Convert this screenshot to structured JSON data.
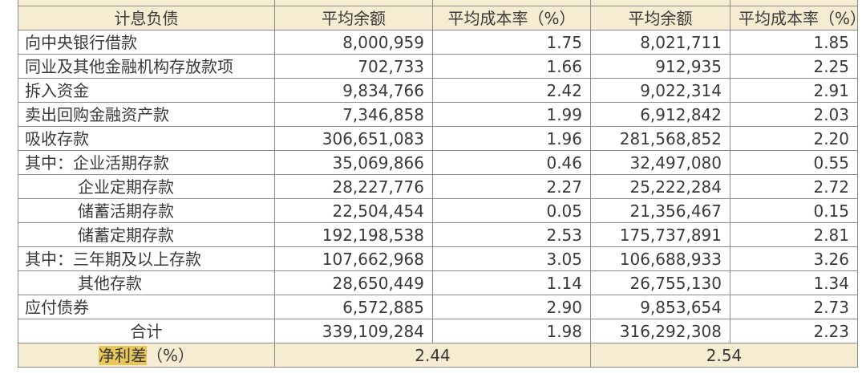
{
  "table": {
    "header": [
      "计息负债",
      "平均余额",
      "平均成本率（%）",
      "平均余额",
      "平均成本率（%）"
    ],
    "rows": [
      {
        "label": "向中央银行借款",
        "bal1": "8,000,959",
        "rate1": "1.75",
        "bal2": "8,021,711",
        "rate2": "1.85"
      },
      {
        "label": "同业及其他金融机构存放款项",
        "bal1": "702,733",
        "rate1": "1.66",
        "bal2": "912,935",
        "rate2": "2.25"
      },
      {
        "label": "拆入资金",
        "bal1": "9,834,766",
        "rate1": "2.42",
        "bal2": "9,022,314",
        "rate2": "2.91"
      },
      {
        "label": "卖出回购金融资产款",
        "bal1": "7,346,858",
        "rate1": "1.99",
        "bal2": "6,912,842",
        "rate2": "2.03"
      },
      {
        "label": "吸收存款",
        "bal1": "306,651,083",
        "rate1": "1.96",
        "bal2": "281,568,852",
        "rate2": "2.20"
      },
      {
        "label": "其中：企业活期存款",
        "bal1": "35,069,866",
        "rate1": "0.46",
        "bal2": "32,497,080",
        "rate2": "0.55"
      },
      {
        "label": "企业定期存款",
        "bal1": "28,227,776",
        "rate1": "2.27",
        "bal2": "25,222,284",
        "rate2": "2.72"
      },
      {
        "label": "储蓄活期存款",
        "bal1": "22,504,454",
        "rate1": "0.05",
        "bal2": "21,356,467",
        "rate2": "0.15"
      },
      {
        "label": "储蓄定期存款",
        "bal1": "192,198,538",
        "rate1": "2.53",
        "bal2": "175,737,891",
        "rate2": "2.81"
      },
      {
        "label": "其中：三年期及以上存款",
        "bal1": "107,662,968",
        "rate1": "3.05",
        "bal2": "106,688,933",
        "rate2": "3.26"
      },
      {
        "label": "其他存款",
        "bal1": "28,650,449",
        "rate1": "1.14",
        "bal2": "26,755,130",
        "rate2": "1.34"
      },
      {
        "label": "应付债券",
        "bal1": "6,572,885",
        "rate1": "2.90",
        "bal2": "9,853,654",
        "rate2": "2.73"
      },
      {
        "label": "合计",
        "bal1": "339,109,284",
        "rate1": "1.98",
        "bal2": "316,292,308",
        "rate2": "2.23"
      }
    ],
    "net": {
      "label_highlight": "净利差",
      "label_rest": "（%）",
      "v1": "2.44",
      "v2": "2.54"
    }
  }
}
